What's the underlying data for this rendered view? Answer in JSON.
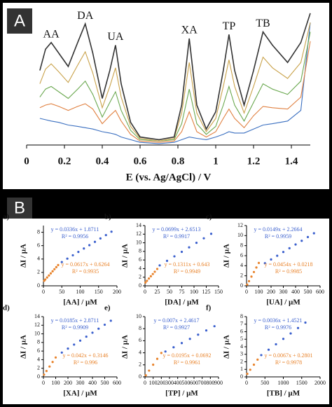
{
  "panel_labels": [
    "A",
    "B"
  ],
  "chart_data": [
    {
      "type": "line",
      "xlabel": "E (vs. Ag/AgCl) / V",
      "xlim": [
        0,
        1.5
      ],
      "xticks": [
        0,
        0.2,
        0.4,
        0.6,
        0.8,
        1,
        1.2,
        1.4
      ],
      "ylim": [
        0,
        100
      ],
      "x": [
        0.07,
        0.1,
        0.13,
        0.17,
        0.22,
        0.27,
        0.31,
        0.35,
        0.4,
        0.44,
        0.47,
        0.5,
        0.55,
        0.6,
        0.7,
        0.78,
        0.82,
        0.86,
        0.9,
        0.95,
        1.0,
        1.04,
        1.07,
        1.1,
        1.15,
        1.2,
        1.25,
        1.3,
        1.38,
        1.45,
        1.5
      ],
      "series": [
        {
          "color": "#333333",
          "values": [
            56,
            72,
            77,
            69,
            59,
            77,
            91,
            69,
            35,
            56,
            75,
            46,
            17,
            6,
            4,
            6,
            30,
            80,
            30,
            12,
            25,
            56,
            83,
            56,
            30,
            56,
            85,
            75,
            62,
            77,
            99
          ]
        },
        {
          "color": "#c9a24a",
          "values": [
            46,
            57,
            61,
            55,
            47,
            60,
            70,
            54,
            28,
            44,
            58,
            36,
            14,
            5,
            3,
            5,
            24,
            62,
            24,
            10,
            20,
            44,
            64,
            44,
            24,
            44,
            66,
            58,
            50,
            62,
            92
          ]
        },
        {
          "color": "#6aa84f",
          "values": [
            36,
            42,
            44,
            40,
            35,
            42,
            48,
            38,
            21,
            32,
            40,
            26,
            11,
            4,
            3,
            4,
            16,
            42,
            16,
            8,
            14,
            30,
            44,
            30,
            18,
            32,
            46,
            42,
            38,
            48,
            85
          ]
        },
        {
          "color": "#e08040",
          "values": [
            28,
            30,
            31,
            29,
            26,
            29,
            31,
            27,
            16,
            22,
            26,
            18,
            8,
            3,
            2,
            3,
            10,
            25,
            10,
            6,
            10,
            20,
            27,
            20,
            13,
            22,
            29,
            28,
            27,
            36,
            78
          ]
        },
        {
          "color": "#3a6fc0",
          "values": [
            20,
            19,
            18,
            17,
            15,
            14,
            13,
            12,
            10,
            9,
            8,
            6,
            4,
            2,
            1,
            2,
            4,
            6,
            5,
            4,
            6,
            8,
            10,
            9,
            9,
            12,
            15,
            16,
            18,
            26,
            92
          ]
        }
      ],
      "annotations": [
        {
          "text": "AA",
          "x": 0.13
        },
        {
          "text": "DA",
          "x": 0.31
        },
        {
          "text": "UA",
          "x": 0.47
        },
        {
          "text": "XA",
          "x": 0.86
        },
        {
          "text": "TP",
          "x": 1.07
        },
        {
          "text": "TB",
          "x": 1.25
        }
      ]
    },
    {
      "type": "scatter",
      "label": "a)",
      "xlabel": "[AA] / µM",
      "ylabel": "ΔI / µA",
      "xlim": [
        0,
        200
      ],
      "xticks": [
        0,
        50,
        100,
        150,
        200
      ],
      "ylim": [
        0,
        9
      ],
      "yticks": [
        0,
        2,
        4,
        6,
        8
      ],
      "series": [
        {
          "color": "#3a5fcd",
          "fit": "y = 0.0336x + 1.8711",
          "r2": "R² = 0.9956",
          "x": [
            50,
            65,
            80,
            95,
            110,
            125,
            140,
            155,
            170,
            185
          ],
          "values": [
            3.55,
            4.06,
            4.56,
            5.06,
            5.57,
            6.07,
            6.57,
            7.08,
            7.58,
            8.09
          ]
        },
        {
          "color": "#e8822a",
          "fit": "y = 0.0617x + 0.6264",
          "r2": "R² = 0.9935",
          "x": [
            2,
            5,
            10,
            15,
            20,
            25,
            30,
            35,
            40
          ],
          "values": [
            0.75,
            0.94,
            1.24,
            1.55,
            1.86,
            2.17,
            2.48,
            2.79,
            3.1
          ]
        }
      ]
    },
    {
      "type": "scatter",
      "label": "b)",
      "xlabel": "[DA] / µM",
      "ylabel": "ΔI / µA",
      "xlim": [
        0,
        150
      ],
      "xticks": [
        0,
        25,
        50,
        75,
        100,
        125,
        150
      ],
      "ylim": [
        0,
        14
      ],
      "yticks": [
        0,
        2,
        4,
        6,
        8,
        10,
        12,
        14
      ],
      "series": [
        {
          "color": "#3a5fcd",
          "fit": "y = 0.0699x + 2.6513",
          "r2": "R² = 0.9917",
          "x": [
            30,
            45,
            60,
            75,
            90,
            105,
            120,
            135
          ],
          "values": [
            4.75,
            5.8,
            6.85,
            7.89,
            8.94,
            9.99,
            11.04,
            12.09
          ]
        },
        {
          "color": "#e8822a",
          "fit": "y = 0.1311x + 0.643",
          "r2": "R² = 0.9949",
          "x": [
            1,
            4,
            8,
            12,
            16,
            20,
            25
          ],
          "values": [
            0.77,
            1.17,
            1.69,
            2.22,
            2.74,
            3.27,
            3.92
          ]
        }
      ]
    },
    {
      "type": "scatter",
      "label": "c)",
      "xlabel": "[UA] / µM",
      "ylabel": "ΔI / µA",
      "xlim": [
        0,
        600
      ],
      "xticks": [
        0,
        100,
        200,
        300,
        400,
        500,
        600
      ],
      "ylim": [
        0,
        12
      ],
      "yticks": [
        0,
        2,
        4,
        6,
        8,
        10,
        12
      ],
      "series": [
        {
          "color": "#3a5fcd",
          "fit": "y = 0.0149x + 2.2664",
          "r2": "R² = 0.9959",
          "x": [
            150,
            200,
            250,
            300,
            350,
            400,
            450,
            500,
            550
          ],
          "values": [
            4.5,
            5.25,
            5.99,
            6.74,
            7.48,
            8.23,
            8.97,
            9.72,
            10.46
          ]
        },
        {
          "color": "#e8822a",
          "fit": "y = 0.0454x + 0.0218",
          "r2": "R² = 0.9985",
          "x": [
            5,
            20,
            40,
            60,
            80,
            100
          ],
          "values": [
            0.25,
            0.93,
            1.84,
            2.75,
            3.65,
            4.56
          ]
        }
      ]
    },
    {
      "type": "scatter",
      "label": "d)",
      "xlabel": "[XA] / µM",
      "ylabel": "ΔI / µA",
      "xlim": [
        0,
        600
      ],
      "xticks": [
        0,
        100,
        200,
        300,
        400,
        500,
        600
      ],
      "ylim": [
        0,
        14
      ],
      "yticks": [
        0,
        2,
        4,
        6,
        8,
        10,
        12,
        14
      ],
      "series": [
        {
          "color": "#3a5fcd",
          "fit": "y = 0.0185x + 2.8711",
          "r2": "R² = 0.9909",
          "x": [
            150,
            200,
            250,
            300,
            350,
            400,
            450,
            500,
            550
          ],
          "values": [
            5.65,
            6.57,
            7.5,
            8.42,
            9.35,
            10.27,
            11.2,
            12.12,
            13.05
          ]
        },
        {
          "color": "#e8822a",
          "fit": "y = 0.042x + 0.3146",
          "r2": "R² = 0.996",
          "x": [
            5,
            25,
            50,
            75,
            100
          ],
          "values": [
            0.52,
            1.36,
            2.41,
            3.46,
            4.51
          ]
        }
      ]
    },
    {
      "type": "scatter",
      "label": "e)",
      "xlabel": "[TP] / µM",
      "ylabel": "ΔI / µA",
      "xlim": [
        0,
        900
      ],
      "xticks": [
        0,
        100,
        200,
        300,
        400,
        500,
        600,
        700,
        800,
        900
      ],
      "ylim": [
        0,
        10
      ],
      "yticks": [
        0,
        2,
        4,
        6,
        8,
        10
      ],
      "series": [
        {
          "color": "#3a5fcd",
          "fit": "y = 0.007x + 2.4617",
          "r2": "R² = 0.9927",
          "x": [
            250,
            350,
            450,
            550,
            650,
            750,
            850
          ],
          "values": [
            4.21,
            4.91,
            5.61,
            6.31,
            7.01,
            7.71,
            8.41
          ]
        },
        {
          "color": "#e8822a",
          "fit": "y = 0.0195x + 0.0692",
          "r2": "R² = 0.9961",
          "x": [
            10,
            50,
            100,
            150,
            200
          ],
          "values": [
            0.26,
            1.04,
            2.02,
            2.99,
            3.97
          ]
        }
      ]
    },
    {
      "type": "scatter",
      "label": "f)",
      "xlabel": "[TB] / µM",
      "ylabel": "ΔI / µA",
      "xlim": [
        0,
        2000
      ],
      "xticks": [
        0,
        500,
        1000,
        1500,
        2000
      ],
      "ylim": [
        0,
        8
      ],
      "yticks": [
        0,
        1,
        2,
        3,
        4,
        5,
        6,
        7,
        8
      ],
      "series": [
        {
          "color": "#3a5fcd",
          "fit": "y = 0.0036x + 1.4521",
          "r2": "R² = 0.9976",
          "x": [
            400,
            600,
            800,
            1000,
            1200,
            1400,
            1600
          ],
          "values": [
            2.89,
            3.61,
            4.33,
            5.05,
            5.77,
            6.49,
            7.21
          ]
        },
        {
          "color": "#e8822a",
          "fit": "y = 0.0067x + 0.2801",
          "r2": "R² = 0.9978",
          "x": [
            20,
            100,
            200,
            300
          ],
          "values": [
            0.41,
            0.95,
            1.62,
            2.29
          ]
        }
      ]
    }
  ]
}
